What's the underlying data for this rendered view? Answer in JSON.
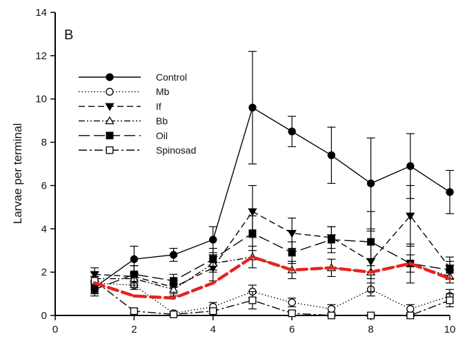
{
  "chart_data": {
    "type": "line",
    "panel_label": "B",
    "ylabel": "Larvae per terminal",
    "xlabel": "",
    "xlim": [
      0,
      10
    ],
    "ylim": [
      0,
      14
    ],
    "x_ticks": [
      0,
      2,
      4,
      6,
      8,
      10
    ],
    "y_ticks": [
      0,
      2,
      4,
      6,
      8,
      10,
      12,
      14
    ],
    "grid": false,
    "legend_position": "top-left",
    "series": [
      {
        "name": "Control",
        "marker": "filled-circle",
        "dash": "solid",
        "color": "#000000",
        "x": [
          1,
          2,
          3,
          4,
          5,
          6,
          7,
          8,
          9,
          10
        ],
        "y": [
          1.3,
          2.6,
          2.8,
          3.5,
          9.6,
          8.5,
          7.4,
          6.1,
          6.9,
          5.7
        ],
        "err": [
          0.3,
          0.6,
          0.3,
          0.6,
          2.6,
          0.7,
          1.3,
          2.1,
          1.5,
          1.0
        ]
      },
      {
        "name": "Mb",
        "marker": "open-circle",
        "dash": "dotted",
        "color": "#000000",
        "x": [
          1,
          2,
          3,
          4,
          5,
          6,
          7,
          8,
          9,
          10
        ],
        "y": [
          1.5,
          1.4,
          0.1,
          0.4,
          1.1,
          0.6,
          0.3,
          1.2,
          0.3,
          0.9
        ],
        "err": [
          0.3,
          0.2,
          0.1,
          0.2,
          0.3,
          0.2,
          0.2,
          0.3,
          0.2,
          0.3
        ]
      },
      {
        "name": "If",
        "marker": "filled-triangle-down",
        "dash": "dashed",
        "color": "#000000",
        "x": [
          1,
          2,
          3,
          4,
          5,
          6,
          7,
          8,
          9,
          10
        ],
        "y": [
          1.9,
          1.8,
          1.3,
          2.2,
          4.8,
          3.8,
          3.6,
          2.5,
          4.6,
          2.2
        ],
        "err": [
          0.3,
          0.5,
          0.3,
          0.6,
          1.2,
          0.7,
          0.5,
          1.4,
          1.4,
          0.5
        ]
      },
      {
        "name": "Bb",
        "marker": "open-triangle-up",
        "dash": "dash-dot-dot",
        "color": "#000000",
        "x": [
          1,
          2,
          3,
          4,
          5,
          6,
          7,
          8,
          9,
          10
        ],
        "y": [
          1.7,
          1.7,
          1.2,
          2.4,
          2.7,
          2.1,
          2.2,
          2.0,
          2.4,
          1.8
        ],
        "err": [
          0.3,
          0.3,
          0.3,
          0.4,
          0.5,
          0.4,
          0.4,
          0.3,
          0.4,
          0.3
        ]
      },
      {
        "name": "Oil",
        "marker": "filled-square",
        "dash": "long-dash",
        "color": "#000000",
        "x": [
          1,
          2,
          3,
          4,
          5,
          6,
          7,
          8,
          9,
          10
        ],
        "y": [
          1.2,
          1.9,
          1.6,
          2.6,
          3.8,
          2.9,
          3.5,
          3.4,
          2.4,
          2.1
        ],
        "err": [
          0.3,
          0.4,
          0.3,
          0.5,
          0.8,
          0.5,
          0.6,
          1.4,
          0.9,
          0.4
        ]
      },
      {
        "name": "Spinosad",
        "marker": "open-square",
        "dash": "dash-dot",
        "color": "#000000",
        "x": [
          1,
          2,
          3,
          4,
          5,
          6,
          7,
          8,
          9,
          10
        ],
        "y": [
          1.6,
          0.2,
          0.05,
          0.2,
          0.7,
          0.1,
          0.0,
          0.0,
          0.0,
          0.7
        ],
        "err": [
          0.2,
          0.1,
          0.05,
          0.1,
          0.4,
          0.1,
          0.05,
          0.05,
          0.05,
          0.3
        ]
      }
    ],
    "highlight": {
      "color": "#e8231f",
      "dash": "dashed",
      "x": [
        1,
        2,
        3,
        4,
        5,
        6,
        7,
        8,
        9,
        10
      ],
      "y": [
        1.5,
        0.9,
        0.8,
        1.5,
        2.7,
        2.1,
        2.2,
        2.0,
        2.4,
        1.7
      ]
    }
  }
}
